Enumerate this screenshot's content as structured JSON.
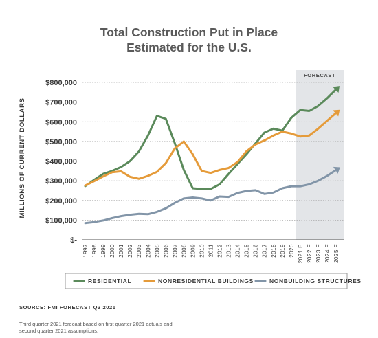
{
  "title_lines": [
    "Total Construction Put in Place",
    "Estimated for the U.S."
  ],
  "forecast_label": "FORECAST",
  "source": "SOURCE: FMI FORECAST Q3 2021",
  "note": "Third quarter 2021 forecast based on first quarter 2021 actuals and second quarter 2021 assumptions.",
  "colors": {
    "residential": "#5b8a5b",
    "nonresidential": "#e59b3a",
    "nonbuilding": "#8295a8",
    "forecast_band": "#e3e5e8",
    "grid": "#aaaaaa",
    "border": "#9a9a9a"
  },
  "chart_data": {
    "type": "line",
    "title": "Total Construction Put in Place Estimated for the U.S.",
    "ylabel": "MILLIONS OF CURRENT DOLLARS",
    "xlabel": "",
    "ylim": [
      0,
      800000
    ],
    "yticks": [
      0,
      100000,
      200000,
      300000,
      400000,
      500000,
      600000,
      700000,
      800000
    ],
    "ytick_labels": [
      "$-",
      "$100,000",
      "$200,000",
      "$300,000",
      "$400,000",
      "$500,000",
      "$600,000",
      "$700,000",
      "$800,000"
    ],
    "categories": [
      "1997",
      "1998",
      "1999",
      "2000",
      "2001",
      "2002",
      "2003",
      "2004",
      "2005",
      "2006",
      "2007",
      "2008",
      "2009",
      "2010",
      "2011",
      "2012",
      "2013",
      "2014",
      "2015",
      "2016",
      "2017",
      "2018",
      "2019",
      "2020",
      "2021 E",
      "2022 F",
      "2023 F",
      "2024 F",
      "2025 F"
    ],
    "forecast_start_index": 24,
    "grid": true,
    "legend_position": "bottom",
    "series": [
      {
        "name": "RESIDENTIAL",
        "color_key": "residential",
        "values": [
          273000,
          305000,
          335000,
          350000,
          370000,
          400000,
          450000,
          530000,
          630000,
          615000,
          490000,
          355000,
          262000,
          258000,
          258000,
          282000,
          335000,
          385000,
          435000,
          490000,
          545000,
          565000,
          555000,
          620000,
          660000,
          655000,
          680000,
          720000,
          765000
        ]
      },
      {
        "name": "NONRESIDENTIAL BUILDINGS",
        "color_key": "nonresidential",
        "values": [
          276000,
          298000,
          322000,
          343000,
          348000,
          320000,
          310000,
          325000,
          345000,
          390000,
          465000,
          500000,
          435000,
          350000,
          340000,
          355000,
          365000,
          395000,
          450000,
          485000,
          505000,
          530000,
          550000,
          540000,
          525000,
          530000,
          565000,
          605000,
          645000
        ]
      },
      {
        "name": "NONBUILDING STRUCTURES",
        "color_key": "nonbuilding",
        "values": [
          85000,
          90000,
          98000,
          110000,
          120000,
          127000,
          132000,
          130000,
          142000,
          160000,
          188000,
          210000,
          215000,
          210000,
          200000,
          220000,
          218000,
          238000,
          248000,
          252000,
          233000,
          240000,
          262000,
          272000,
          272000,
          282000,
          300000,
          325000,
          355000
        ]
      }
    ]
  }
}
